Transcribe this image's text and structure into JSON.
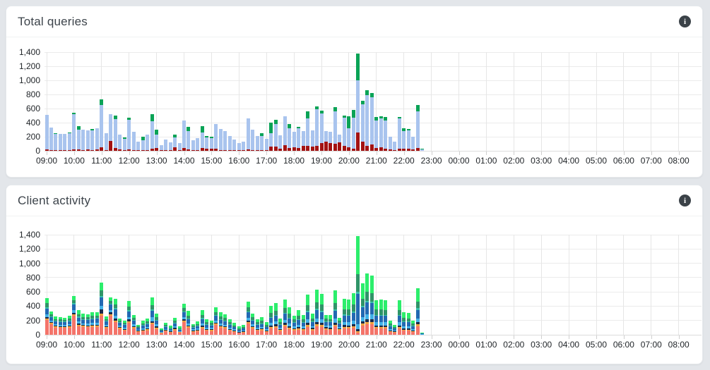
{
  "page": {
    "background": "#e3e6ea"
  },
  "panels": [
    {
      "title": "Total queries",
      "info_icon_glyph": "i"
    },
    {
      "title": "Client activity",
      "info_icon_glyph": "i"
    }
  ],
  "chart_data": [
    {
      "type": "bar",
      "stacked": true,
      "title": "Total queries",
      "xlabel": "",
      "ylabel": "",
      "ylim": [
        0,
        1400
      ],
      "grid": true,
      "legend": "none",
      "y_ticks": [
        "0",
        "200",
        "400",
        "600",
        "800",
        "1,000",
        "1,200",
        "1,400"
      ],
      "y_tick_step": 200,
      "x_hour_labels": [
        "09:00",
        "10:00",
        "11:00",
        "12:00",
        "13:00",
        "14:00",
        "15:00",
        "16:00",
        "17:00",
        "18:00",
        "19:00",
        "20:00",
        "21:00",
        "22:00",
        "23:00",
        "00:00",
        "01:00",
        "02:00",
        "03:00",
        "04:00",
        "05:00",
        "06:00",
        "07:00",
        "08:00"
      ],
      "bar_start_time": "09:00",
      "bar_interval_minutes": 10,
      "series": [
        {
          "name": "red-bottom-segment",
          "color": "#a31212"
        },
        {
          "name": "blue-middle-segment",
          "color": "#a9c4ee"
        },
        {
          "name": "green-top-segment",
          "color": "#09a356"
        }
      ],
      "stacks": [
        [
          20,
          490,
          0
        ],
        [
          15,
          315,
          0
        ],
        [
          12,
          228,
          15
        ],
        [
          10,
          235,
          0
        ],
        [
          12,
          228,
          0
        ],
        [
          10,
          243,
          12
        ],
        [
          25,
          495,
          20
        ],
        [
          20,
          285,
          45
        ],
        [
          15,
          285,
          0
        ],
        [
          18,
          272,
          0
        ],
        [
          15,
          280,
          20
        ],
        [
          25,
          295,
          0
        ],
        [
          50,
          600,
          80
        ],
        [
          15,
          240,
          0
        ],
        [
          140,
          385,
          0
        ],
        [
          45,
          405,
          55
        ],
        [
          20,
          210,
          0
        ],
        [
          12,
          163,
          20
        ],
        [
          25,
          420,
          25
        ],
        [
          15,
          260,
          0
        ],
        [
          10,
          125,
          0
        ],
        [
          12,
          143,
          45
        ],
        [
          15,
          215,
          0
        ],
        [
          30,
          390,
          100
        ],
        [
          40,
          195,
          65
        ],
        [
          10,
          75,
          0
        ],
        [
          15,
          150,
          0
        ],
        [
          10,
          115,
          0
        ],
        [
          50,
          145,
          40
        ],
        [
          12,
          103,
          0
        ],
        [
          40,
          395,
          0
        ],
        [
          20,
          260,
          60
        ],
        [
          12,
          138,
          0
        ],
        [
          15,
          170,
          0
        ],
        [
          45,
          215,
          90
        ],
        [
          35,
          155,
          25
        ],
        [
          30,
          155,
          15
        ],
        [
          30,
          355,
          0
        ],
        [
          15,
          300,
          0
        ],
        [
          12,
          273,
          0
        ],
        [
          12,
          203,
          0
        ],
        [
          10,
          155,
          0
        ],
        [
          10,
          105,
          0
        ],
        [
          10,
          125,
          0
        ],
        [
          20,
          445,
          0
        ],
        [
          15,
          285,
          0
        ],
        [
          15,
          200,
          0
        ],
        [
          15,
          195,
          40
        ],
        [
          15,
          160,
          0
        ],
        [
          60,
          195,
          145
        ],
        [
          60,
          325,
          60
        ],
        [
          35,
          190,
          0
        ],
        [
          80,
          415,
          0
        ],
        [
          45,
          275,
          60
        ],
        [
          55,
          215,
          0
        ],
        [
          40,
          280,
          25
        ],
        [
          75,
          205,
          0
        ],
        [
          75,
          390,
          100
        ],
        [
          60,
          235,
          0
        ],
        [
          75,
          515,
          45
        ],
        [
          110,
          420,
          45
        ],
        [
          130,
          150,
          0
        ],
        [
          115,
          160,
          0
        ],
        [
          105,
          455,
          65
        ],
        [
          120,
          115,
          0
        ],
        [
          75,
          400,
          25
        ],
        [
          55,
          270,
          165
        ],
        [
          35,
          440,
          110
        ],
        [
          265,
          740,
          380
        ],
        [
          135,
          530,
          50
        ],
        [
          75,
          720,
          65
        ],
        [
          95,
          670,
          60
        ],
        [
          45,
          390,
          50
        ],
        [
          55,
          410,
          25
        ],
        [
          35,
          400,
          45
        ],
        [
          20,
          180,
          0
        ],
        [
          15,
          120,
          0
        ],
        [
          30,
          435,
          15
        ],
        [
          30,
          250,
          40
        ],
        [
          35,
          255,
          20
        ],
        [
          25,
          175,
          0
        ],
        [
          45,
          515,
          95
        ],
        [
          5,
          15,
          5
        ],
        [
          0,
          0,
          0
        ]
      ]
    },
    {
      "type": "bar",
      "stacked": true,
      "title": "Client activity",
      "xlabel": "",
      "ylabel": "",
      "ylim": [
        0,
        1400
      ],
      "grid": true,
      "legend": "none",
      "y_ticks": [
        "0",
        "200",
        "400",
        "600",
        "800",
        "1,000",
        "1,200",
        "1,400"
      ],
      "y_tick_step": 200,
      "x_hour_labels": [
        "09:00",
        "10:00",
        "11:00",
        "12:00",
        "13:00",
        "14:00",
        "15:00",
        "16:00",
        "17:00",
        "18:00",
        "19:00",
        "20:00",
        "21:00",
        "22:00",
        "23:00",
        "00:00",
        "01:00",
        "02:00",
        "03:00",
        "04:00",
        "05:00",
        "06:00",
        "07:00",
        "08:00"
      ],
      "bar_start_time": "09:00",
      "bar_interval_minutes": 10,
      "series": [
        {
          "name": "client-coral",
          "color": "#f4746a"
        },
        {
          "name": "client-orange",
          "color": "#efa13d"
        },
        {
          "name": "client-navy",
          "color": "#1b2a4a"
        },
        {
          "name": "client-sky",
          "color": "#41b2e8"
        },
        {
          "name": "client-blue",
          "color": "#2269b2"
        },
        {
          "name": "client-teal",
          "color": "#36c0aa"
        },
        {
          "name": "client-green",
          "color": "#2f9468"
        },
        {
          "name": "client-lime",
          "color": "#2cee6c"
        }
      ],
      "stacks": [
        [
          210,
          20,
          15,
          40,
          80,
          15,
          60,
          70
        ],
        [
          150,
          15,
          10,
          25,
          50,
          10,
          30,
          40
        ],
        [
          100,
          15,
          10,
          20,
          40,
          10,
          25,
          35
        ],
        [
          100,
          10,
          10,
          20,
          40,
          10,
          25,
          30
        ],
        [
          95,
          10,
          10,
          20,
          40,
          10,
          25,
          30
        ],
        [
          100,
          15,
          10,
          20,
          45,
          10,
          30,
          35
        ],
        [
          270,
          20,
          15,
          40,
          80,
          15,
          40,
          60
        ],
        [
          120,
          20,
          15,
          30,
          55,
          15,
          35,
          60
        ],
        [
          110,
          15,
          10,
          25,
          50,
          10,
          30,
          50
        ],
        [
          105,
          15,
          10,
          25,
          50,
          10,
          30,
          45
        ],
        [
          110,
          15,
          15,
          25,
          55,
          10,
          35,
          50
        ],
        [
          110,
          15,
          15,
          30,
          55,
          10,
          35,
          50
        ],
        [
          270,
          25,
          60,
          50,
          120,
          20,
          80,
          105
        ],
        [
          90,
          15,
          15,
          20,
          45,
          10,
          25,
          35
        ],
        [
          270,
          20,
          25,
          35,
          70,
          15,
          35,
          55
        ],
        [
          180,
          20,
          30,
          40,
          90,
          15,
          50,
          80
        ],
        [
          80,
          15,
          15,
          20,
          40,
          10,
          20,
          30
        ],
        [
          60,
          10,
          10,
          20,
          35,
          10,
          20,
          30
        ],
        [
          170,
          20,
          25,
          35,
          80,
          15,
          50,
          75
        ],
        [
          90,
          15,
          15,
          25,
          50,
          10,
          30,
          40
        ],
        [
          40,
          10,
          5,
          15,
          25,
          5,
          15,
          20
        ],
        [
          50,
          10,
          10,
          20,
          35,
          10,
          25,
          40
        ],
        [
          60,
          15,
          10,
          20,
          40,
          10,
          30,
          45
        ],
        [
          150,
          20,
          20,
          60,
          90,
          15,
          60,
          105
        ],
        [
          80,
          15,
          20,
          30,
          55,
          10,
          35,
          55
        ],
        [
          20,
          5,
          5,
          10,
          15,
          5,
          10,
          15
        ],
        [
          45,
          10,
          10,
          15,
          30,
          5,
          20,
          30
        ],
        [
          30,
          10,
          5,
          10,
          25,
          5,
          15,
          25
        ],
        [
          60,
          15,
          20,
          20,
          40,
          10,
          30,
          40
        ],
        [
          25,
          10,
          5,
          10,
          20,
          5,
          15,
          25
        ],
        [
          180,
          15,
          20,
          30,
          70,
          15,
          45,
          60
        ],
        [
          100,
          15,
          15,
          30,
          60,
          10,
          40,
          70
        ],
        [
          40,
          10,
          10,
          15,
          25,
          5,
          20,
          25
        ],
        [
          50,
          10,
          10,
          15,
          35,
          5,
          25,
          35
        ],
        [
          90,
          20,
          20,
          30,
          60,
          15,
          45,
          70
        ],
        [
          55,
          15,
          10,
          20,
          40,
          10,
          25,
          40
        ],
        [
          50,
          15,
          10,
          20,
          35,
          10,
          25,
          35
        ],
        [
          140,
          15,
          15,
          30,
          65,
          10,
          40,
          70
        ],
        [
          100,
          15,
          15,
          25,
          55,
          10,
          35,
          60
        ],
        [
          90,
          15,
          10,
          25,
          50,
          10,
          35,
          50
        ],
        [
          60,
          10,
          10,
          20,
          40,
          10,
          25,
          40
        ],
        [
          40,
          10,
          10,
          15,
          30,
          5,
          20,
          35
        ],
        [
          25,
          5,
          5,
          10,
          20,
          5,
          15,
          30
        ],
        [
          30,
          10,
          5,
          15,
          25,
          5,
          15,
          30
        ],
        [
          160,
          20,
          20,
          35,
          80,
          15,
          50,
          85
        ],
        [
          90,
          15,
          15,
          25,
          55,
          10,
          35,
          55
        ],
        [
          55,
          10,
          10,
          20,
          40,
          10,
          30,
          40
        ],
        [
          60,
          15,
          10,
          20,
          45,
          10,
          35,
          55
        ],
        [
          40,
          10,
          10,
          15,
          30,
          5,
          25,
          40
        ],
        [
          90,
          20,
          20,
          35,
          70,
          15,
          55,
          95
        ],
        [
          100,
          20,
          25,
          40,
          80,
          15,
          60,
          105
        ],
        [
          50,
          15,
          15,
          20,
          40,
          10,
          30,
          45
        ],
        [
          120,
          20,
          25,
          40,
          90,
          15,
          65,
          120
        ],
        [
          80,
          20,
          20,
          35,
          70,
          15,
          55,
          85
        ],
        [
          60,
          15,
          15,
          25,
          50,
          10,
          40,
          55
        ],
        [
          70,
          20,
          20,
          30,
          65,
          10,
          50,
          80
        ],
        [
          60,
          15,
          15,
          25,
          55,
          10,
          40,
          60
        ],
        [
          110,
          25,
          30,
          50,
          100,
          20,
          80,
          150
        ],
        [
          60,
          15,
          20,
          25,
          55,
          10,
          45,
          65
        ],
        [
          120,
          25,
          30,
          55,
          115,
          20,
          90,
          180
        ],
        [
          110,
          25,
          30,
          50,
          105,
          20,
          85,
          150
        ],
        [
          70,
          15,
          20,
          25,
          50,
          10,
          35,
          55
        ],
        [
          65,
          15,
          20,
          25,
          50,
          10,
          35,
          55
        ],
        [
          115,
          25,
          30,
          55,
          110,
          20,
          90,
          180
        ],
        [
          60,
          15,
          15,
          20,
          45,
          10,
          30,
          40
        ],
        [
          90,
          20,
          25,
          45,
          90,
          15,
          75,
          140
        ],
        [
          85,
          20,
          25,
          45,
          90,
          15,
          75,
          135
        ],
        [
          95,
          25,
          30,
          50,
          110,
          20,
          90,
          165
        ],
        [
          25,
          20,
          30,
          70,
          430,
          30,
          240,
          540
        ],
        [
          130,
          25,
          35,
          60,
          130,
          20,
          105,
          210
        ],
        [
          150,
          30,
          40,
          70,
          160,
          25,
          125,
          260
        ],
        [
          145,
          30,
          40,
          70,
          155,
          25,
          120,
          240
        ],
        [
          85,
          20,
          25,
          45,
          90,
          15,
          75,
          130
        ],
        [
          85,
          20,
          25,
          45,
          90,
          15,
          75,
          135
        ],
        [
          85,
          20,
          25,
          45,
          90,
          15,
          70,
          130
        ],
        [
          40,
          10,
          10,
          20,
          40,
          10,
          30,
          40
        ],
        [
          25,
          10,
          10,
          15,
          25,
          5,
          20,
          25
        ],
        [
          85,
          20,
          25,
          45,
          90,
          15,
          70,
          130
        ],
        [
          55,
          15,
          20,
          30,
          60,
          10,
          50,
          80
        ],
        [
          55,
          15,
          15,
          30,
          60,
          10,
          45,
          80
        ],
        [
          35,
          10,
          10,
          20,
          40,
          10,
          30,
          45
        ],
        [
          120,
          25,
          30,
          55,
          120,
          20,
          95,
          190
        ],
        [
          5,
          0,
          0,
          5,
          5,
          0,
          5,
          5
        ],
        [
          0,
          0,
          0,
          0,
          0,
          0,
          0,
          0
        ]
      ]
    }
  ]
}
